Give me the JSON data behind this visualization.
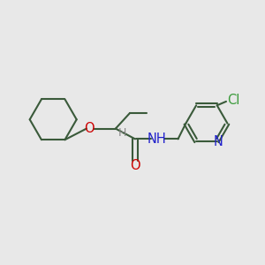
{
  "bg_color": "#e8e8e8",
  "bond_color": "#3a5a3a",
  "O_color": "#cc0000",
  "N_color": "#2222cc",
  "Cl_color": "#3a9a3a",
  "H_color": "#888888",
  "line_width": 1.5,
  "font_size": 10.5,
  "fig_width": 3.0,
  "fig_height": 3.0,
  "dpi": 100,
  "xlim": [
    0,
    10
  ],
  "ylim": [
    0,
    10
  ]
}
